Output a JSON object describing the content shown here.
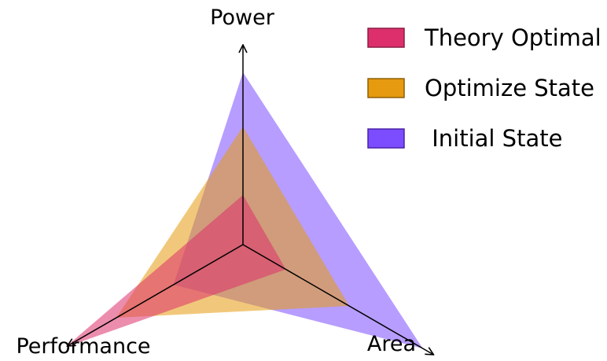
{
  "chart_data": {
    "type": "radar",
    "title": "",
    "axes": [
      {
        "label": "Power",
        "max": 1
      },
      {
        "label": "Area",
        "max": 1
      },
      {
        "label": "Performance",
        "max": 1
      }
    ],
    "series": [
      {
        "name": "Initial State",
        "values": [
          0.73,
          0.88,
          0.34
        ],
        "color": "#7b4dff"
      },
      {
        "name": "Optimize State",
        "values": [
          0.5,
          0.52,
          0.62
        ],
        "color": "#e59a0f"
      },
      {
        "name": "Theory Optimal",
        "values": [
          0.21,
          0.21,
          0.87
        ],
        "color": "#dd2f6b"
      }
    ],
    "legend": {
      "position": "top-right",
      "entries": [
        "Theory Optimal",
        "Optimize State",
        " Initial State"
      ]
    }
  }
}
